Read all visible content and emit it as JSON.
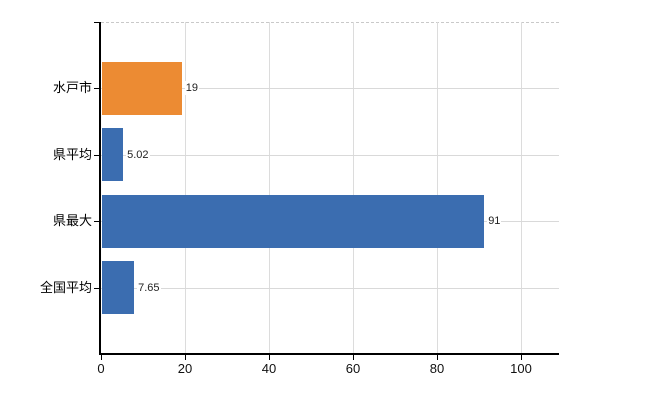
{
  "chart_data": {
    "type": "bar",
    "orientation": "horizontal",
    "title": "",
    "categories": [
      "水戸市",
      "県平均",
      "県最大",
      "全国平均"
    ],
    "values": [
      19,
      5.02,
      91,
      7.65
    ],
    "value_labels": [
      "19",
      "5.02",
      "91",
      "7.65"
    ],
    "bar_colors": [
      "#EC8B33",
      "#3B6DB0",
      "#3B6DB0",
      "#3B6DB0"
    ],
    "xticks": [
      0,
      20,
      40,
      60,
      80,
      100
    ],
    "xtick_labels": [
      "0",
      "20",
      "40",
      "60",
      "80",
      "100"
    ],
    "xlim": [
      0,
      109
    ],
    "grid": true,
    "legend": "none",
    "axis_color": "#000000",
    "gridline_color": "#d9d9d9",
    "background": "#ffffff"
  }
}
